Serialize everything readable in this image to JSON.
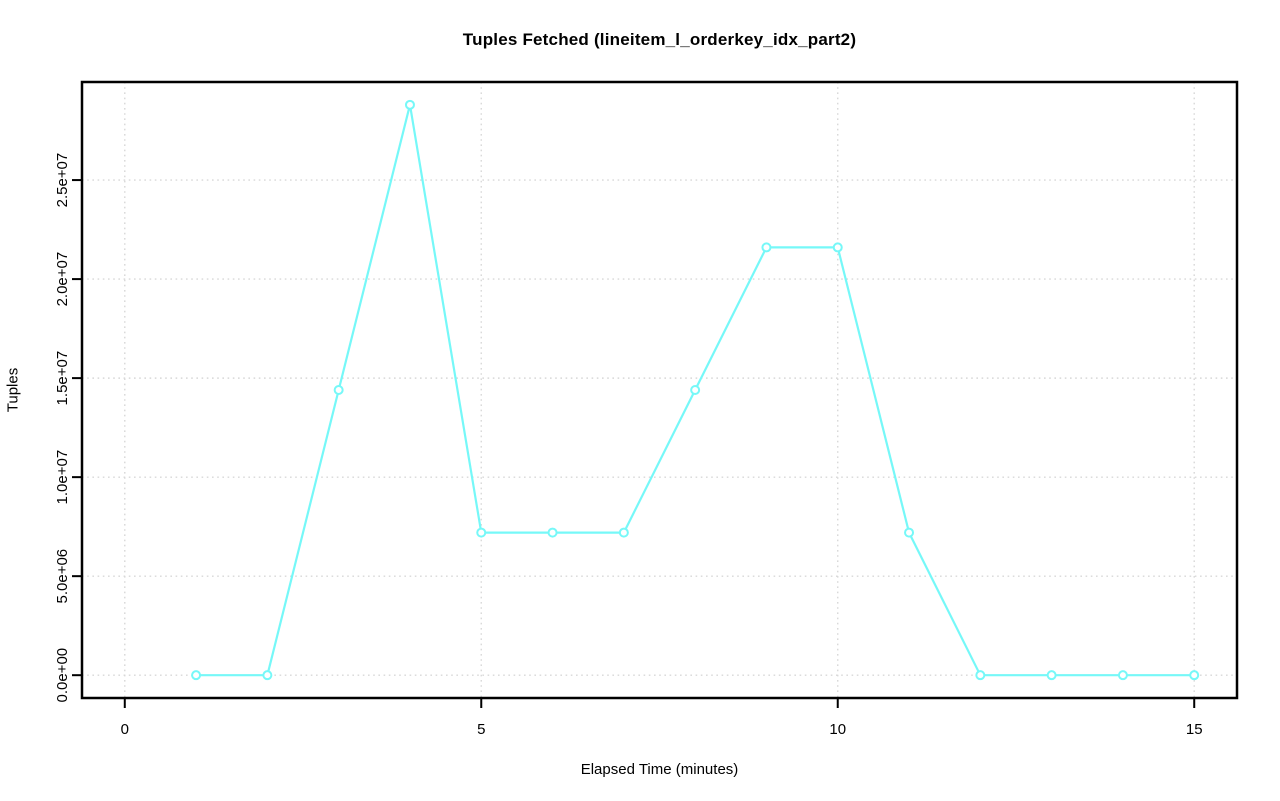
{
  "chart_data": {
    "type": "line",
    "title": "Tuples Fetched (lineitem_l_orderkey_idx_part2)",
    "xlabel": "Elapsed Time (minutes)",
    "ylabel": "Tuples",
    "x": [
      1,
      2,
      3,
      4,
      5,
      6,
      7,
      8,
      9,
      10,
      11,
      12,
      13,
      14,
      15
    ],
    "values": [
      0,
      0,
      14400000,
      28800000,
      7200000,
      7200000,
      7200000,
      14400000,
      21600000,
      21600000,
      7200000,
      0,
      0,
      0,
      0
    ],
    "xticks": [
      0,
      5,
      10,
      15
    ],
    "xtick_labels": [
      "0",
      "5",
      "10",
      "15"
    ],
    "yticks": [
      0,
      5000000,
      10000000,
      15000000,
      20000000,
      25000000
    ],
    "ytick_labels": [
      "0.0e+00",
      "5.0e+06",
      "1.0e+07",
      "1.5e+07",
      "2.0e+07",
      "2.5e+07"
    ],
    "xlim": [
      -0.6,
      15.6
    ],
    "ylim": [
      -1152000,
      29952000
    ],
    "grid": true,
    "grid_style": "dotted",
    "legend_position": "none",
    "marker": "open-circle",
    "colors": {
      "series": "#76F8F8",
      "grid": "#D8D8D8",
      "axis": "#000000",
      "text": "#000000",
      "background": "#FFFFFF"
    }
  }
}
